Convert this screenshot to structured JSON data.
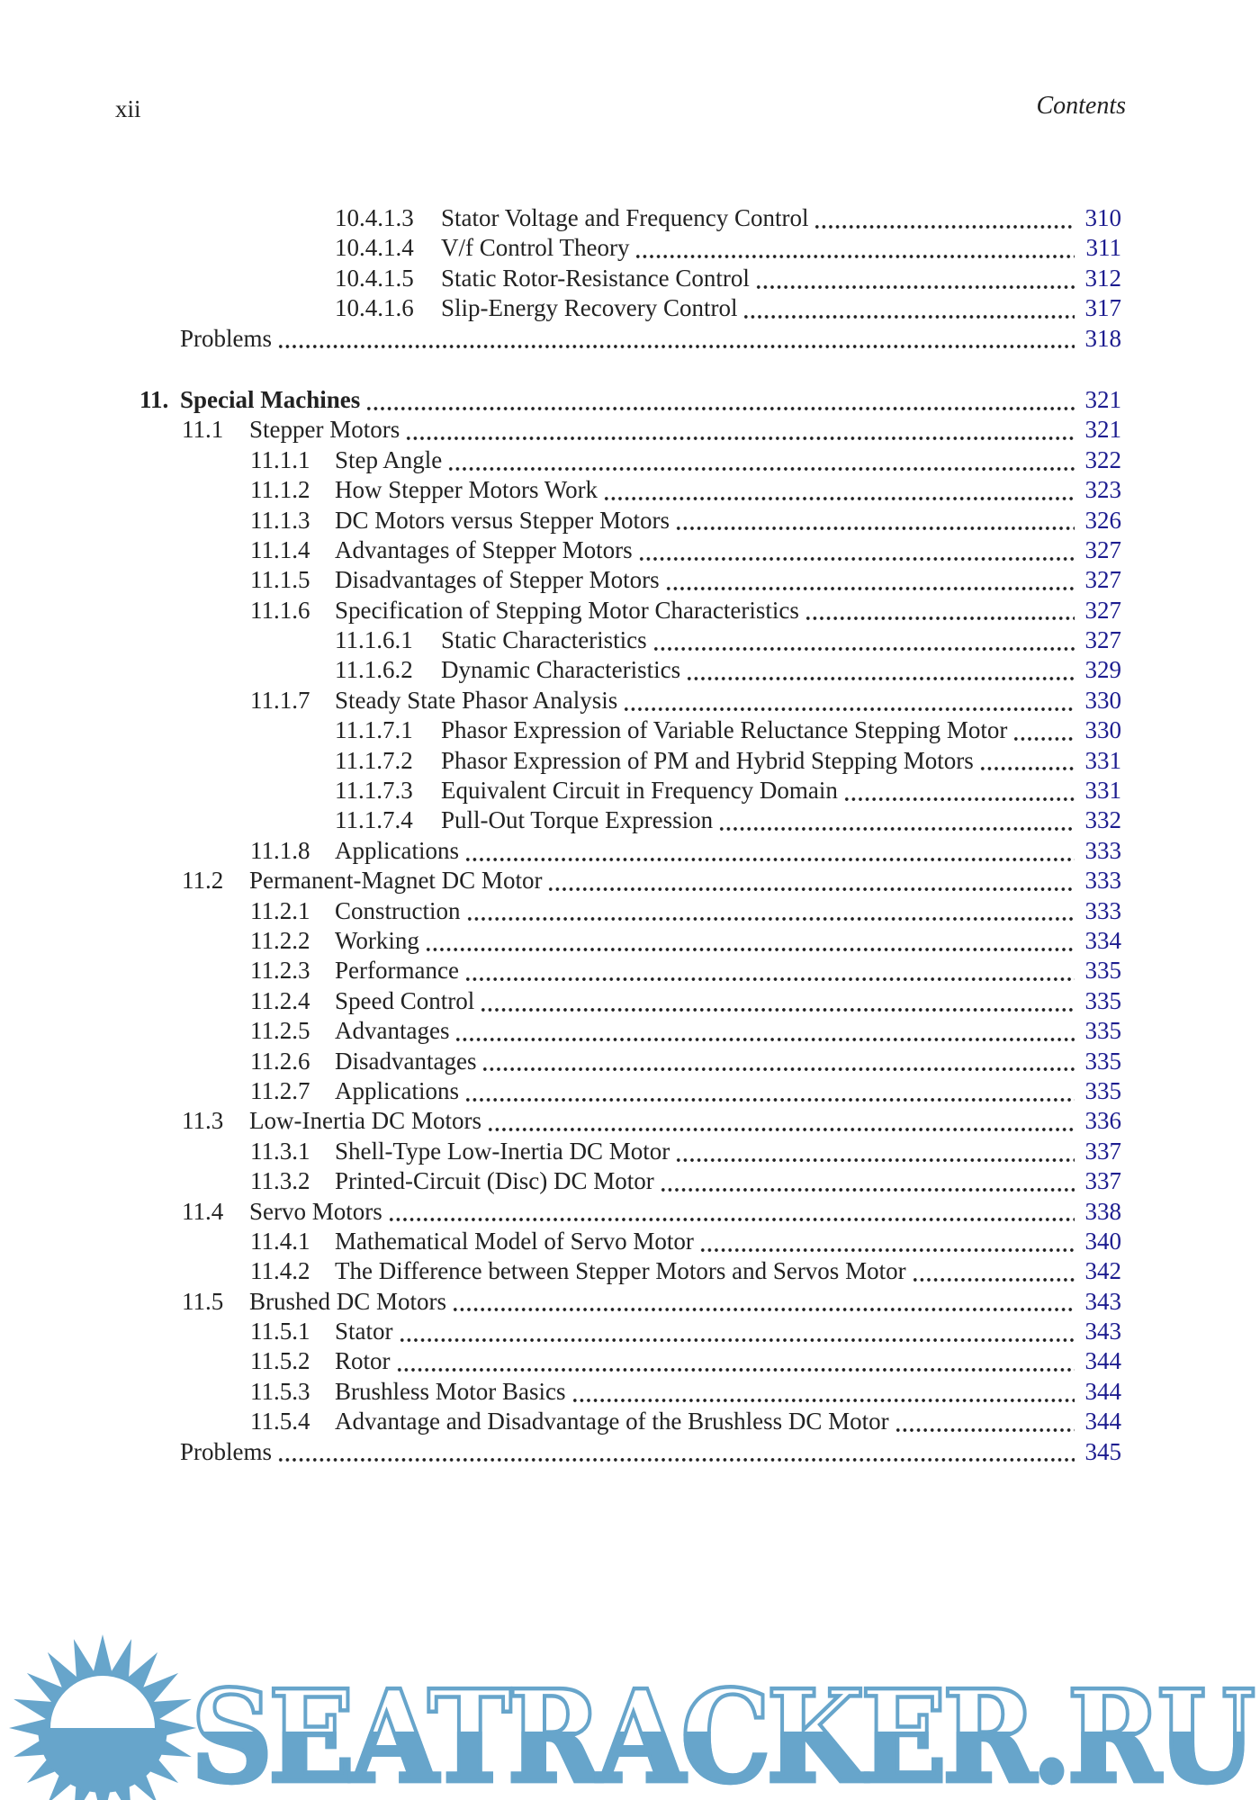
{
  "header": {
    "page_label": "xii",
    "running_head": "Contents"
  },
  "colors": {
    "ink": "#222222",
    "page_num": "#1c1c8f",
    "watermark": "#67a5cb"
  },
  "toc": {
    "blocks": [
      {
        "entries": [
          {
            "num": "10.4.1.3",
            "title": "Stator Voltage and Frequency Control",
            "page": "310",
            "level": "l4",
            "bold": false
          },
          {
            "num": "10.4.1.4",
            "title": "V/f Control Theory",
            "page": "311",
            "level": "l4",
            "bold": false
          },
          {
            "num": "10.4.1.5",
            "title": "Static Rotor-Resistance Control",
            "page": "312",
            "level": "l4",
            "bold": false
          },
          {
            "num": "10.4.1.6",
            "title": "Slip-Energy Recovery Control",
            "page": "317",
            "level": "l4",
            "bold": false
          },
          {
            "num": "",
            "title": "Problems",
            "page": "318",
            "level": "problems",
            "bold": false
          }
        ]
      },
      {
        "entries": [
          {
            "num": "11.",
            "title": "Special Machines",
            "page": "321",
            "level": "chapter",
            "bold": true
          },
          {
            "num": "11.1",
            "title": "Stepper Motors",
            "page": "321",
            "level": "l2",
            "bold": false
          },
          {
            "num": "11.1.1",
            "title": "Step Angle",
            "page": "322",
            "level": "l3",
            "bold": false
          },
          {
            "num": "11.1.2",
            "title": "How Stepper Motors Work",
            "page": "323",
            "level": "l3",
            "bold": false
          },
          {
            "num": "11.1.3",
            "title": "DC Motors versus Stepper Motors",
            "page": "326",
            "level": "l3",
            "bold": false
          },
          {
            "num": "11.1.4",
            "title": "Advantages of Stepper Motors",
            "page": "327",
            "level": "l3",
            "bold": false
          },
          {
            "num": "11.1.5",
            "title": "Disadvantages of Stepper Motors",
            "page": "327",
            "level": "l3",
            "bold": false
          },
          {
            "num": "11.1.6",
            "title": "Specification of Stepping Motor Characteristics",
            "page": "327",
            "level": "l3",
            "bold": false
          },
          {
            "num": "11.1.6.1",
            "title": "Static Characteristics",
            "page": "327",
            "level": "l4",
            "bold": false
          },
          {
            "num": "11.1.6.2",
            "title": "Dynamic Characteristics",
            "page": "329",
            "level": "l4",
            "bold": false
          },
          {
            "num": "11.1.7",
            "title": "Steady State Phasor Analysis",
            "page": "330",
            "level": "l3",
            "bold": false
          },
          {
            "num": "11.1.7.1",
            "title": "Phasor Expression of Variable Reluctance Stepping Motor",
            "page": "330",
            "level": "l4",
            "bold": false
          },
          {
            "num": "11.1.7.2",
            "title": "Phasor Expression of PM and Hybrid Stepping Motors",
            "page": "331",
            "level": "l4",
            "bold": false
          },
          {
            "num": "11.1.7.3",
            "title": "Equivalent Circuit in Frequency Domain",
            "page": "331",
            "level": "l4",
            "bold": false
          },
          {
            "num": "11.1.7.4",
            "title": "Pull-Out Torque Expression",
            "page": "332",
            "level": "l4",
            "bold": false
          },
          {
            "num": "11.1.8",
            "title": "Applications",
            "page": "333",
            "level": "l3",
            "bold": false
          },
          {
            "num": "11.2",
            "title": "Permanent-Magnet DC Motor",
            "page": "333",
            "level": "l2",
            "bold": false
          },
          {
            "num": "11.2.1",
            "title": "Construction",
            "page": "333",
            "level": "l3",
            "bold": false
          },
          {
            "num": "11.2.2",
            "title": "Working",
            "page": "334",
            "level": "l3",
            "bold": false
          },
          {
            "num": "11.2.3",
            "title": "Performance",
            "page": "335",
            "level": "l3",
            "bold": false
          },
          {
            "num": "11.2.4",
            "title": "Speed Control",
            "page": "335",
            "level": "l3",
            "bold": false
          },
          {
            "num": "11.2.5",
            "title": "Advantages",
            "page": "335",
            "level": "l3",
            "bold": false
          },
          {
            "num": "11.2.6",
            "title": "Disadvantages",
            "page": "335",
            "level": "l3",
            "bold": false
          },
          {
            "num": "11.2.7",
            "title": "Applications",
            "page": "335",
            "level": "l3",
            "bold": false
          },
          {
            "num": "11.3",
            "title": "Low-Inertia DC Motors",
            "page": "336",
            "level": "l2",
            "bold": false
          },
          {
            "num": "11.3.1",
            "title": "Shell-Type Low-Inertia DC Motor",
            "page": "337",
            "level": "l3",
            "bold": false
          },
          {
            "num": "11.3.2",
            "title": "Printed-Circuit (Disc) DC Motor",
            "page": "337",
            "level": "l3",
            "bold": false
          },
          {
            "num": "11.4",
            "title": "Servo Motors",
            "page": "338",
            "level": "l2",
            "bold": false
          },
          {
            "num": "11.4.1",
            "title": "Mathematical Model of Servo Motor",
            "page": "340",
            "level": "l3",
            "bold": false
          },
          {
            "num": "11.4.2",
            "title": "The Difference between Stepper Motors and Servos Motor",
            "page": "342",
            "level": "l3",
            "bold": false
          },
          {
            "num": "11.5",
            "title": "Brushed DC Motors",
            "page": "343",
            "level": "l2",
            "bold": false
          },
          {
            "num": "11.5.1",
            "title": "Stator",
            "page": "343",
            "level": "l3",
            "bold": false
          },
          {
            "num": "11.5.2",
            "title": "Rotor",
            "page": "344",
            "level": "l3",
            "bold": false
          },
          {
            "num": "11.5.3",
            "title": "Brushless Motor Basics",
            "page": "344",
            "level": "l3",
            "bold": false
          },
          {
            "num": "11.5.4",
            "title": "Advantage and Disadvantage of the Brushless DC Motor",
            "page": "344",
            "level": "l3",
            "bold": false
          },
          {
            "num": "",
            "title": "Problems",
            "page": "345",
            "level": "problems",
            "bold": false
          }
        ]
      }
    ]
  },
  "watermark": {
    "text": "SEATRACKER.RU",
    "icon": "sun-logo"
  }
}
